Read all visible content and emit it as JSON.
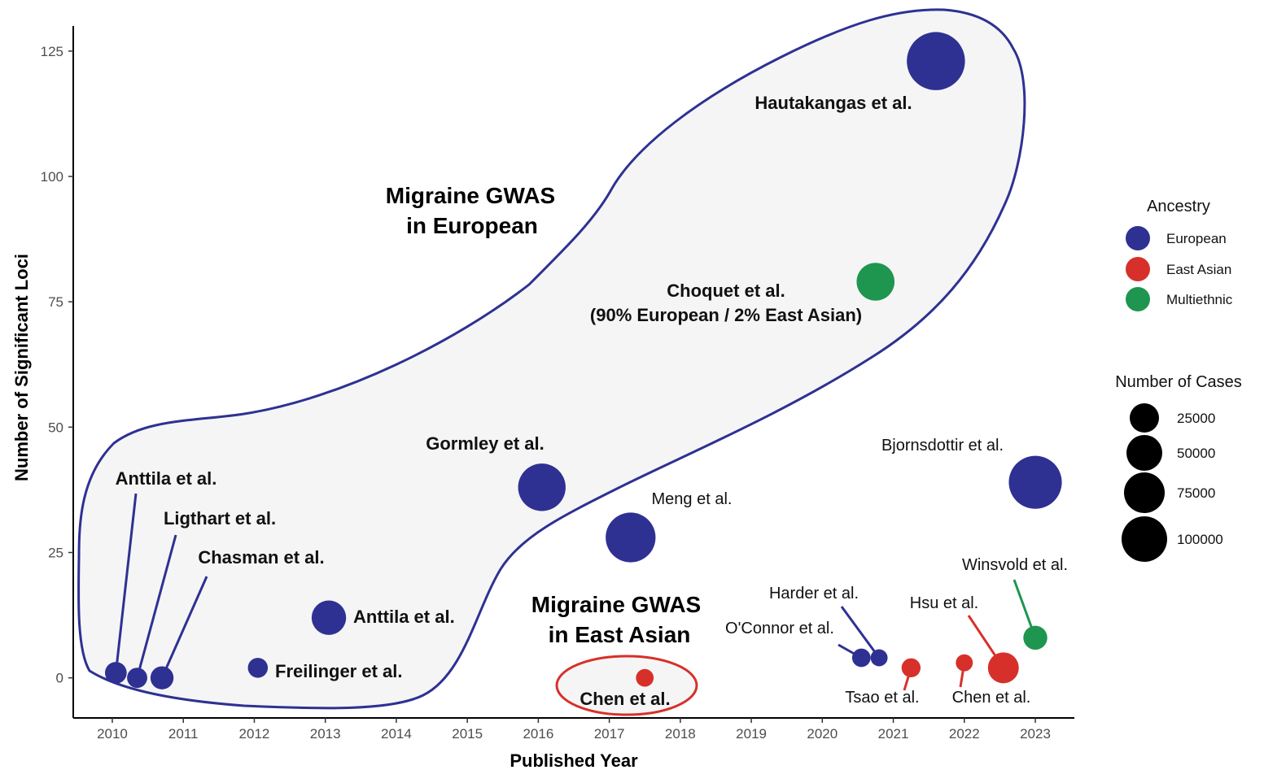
{
  "chart_data": {
    "type": "scatter",
    "xlabel": "Published Year",
    "ylabel": "Number of Significant Loci",
    "xlim": [
      2009.45,
      2023.55
    ],
    "ylim": [
      -8,
      130
    ],
    "x_ticks": [
      "2010",
      "2011",
      "2012",
      "2013",
      "2014",
      "2015",
      "2016",
      "2017",
      "2018",
      "2019",
      "2020",
      "2021",
      "2022",
      "2023"
    ],
    "y_ticks": [
      "0",
      "25",
      "50",
      "75",
      "100",
      "125"
    ],
    "grid": false,
    "colors": {
      "European": "#2e3192",
      "East Asian": "#d7302a",
      "Multiethnic": "#1e9650"
    },
    "points": [
      {
        "study": "Anttila et al.",
        "year": 2010.05,
        "loci": 1,
        "cases": 3800,
        "ancestry": "European"
      },
      {
        "study": "Ligthart et al.",
        "year": 2010.35,
        "loci": 0,
        "cases": 2600,
        "ancestry": "European"
      },
      {
        "study": "Chasman et al.",
        "year": 2010.7,
        "loci": 0,
        "cases": 5100,
        "ancestry": "European"
      },
      {
        "study": "Freilinger et al.",
        "year": 2012.05,
        "loci": 2,
        "cases": 2400,
        "ancestry": "European"
      },
      {
        "study": "Anttila et al.",
        "year": 2013.05,
        "loci": 12,
        "cases": 23000,
        "ancestry": "European"
      },
      {
        "study": "Gormley et al.",
        "year": 2016.05,
        "loci": 38,
        "cases": 59600,
        "ancestry": "European"
      },
      {
        "study": "Meng et al.",
        "year": 2017.3,
        "loci": 28,
        "cases": 68000,
        "ancestry": "European"
      },
      {
        "study": "Chen et al.",
        "year": 2017.5,
        "loci": 0,
        "cases": 1100,
        "ancestry": "East Asian"
      },
      {
        "study": "Choquet et al.",
        "year": 2020.75,
        "loci": 79,
        "cases": 31000,
        "ancestry": "Multiethnic"
      },
      {
        "study": "Hautakangas et al.",
        "year": 2021.6,
        "loci": 123,
        "cases": 102000,
        "ancestry": "European"
      },
      {
        "study": "O'Connor et al.",
        "year": 2020.55,
        "loci": 4,
        "cases": 1500,
        "ancestry": "European"
      },
      {
        "study": "Harder et al.",
        "year": 2020.8,
        "loci": 4,
        "cases": 800,
        "ancestry": "European"
      },
      {
        "study": "Tsao et al.",
        "year": 2021.25,
        "loci": 2,
        "cases": 1800,
        "ancestry": "East Asian"
      },
      {
        "study": "Chen et al.",
        "year": 2022.0,
        "loci": 3,
        "cases": 800,
        "ancestry": "East Asian"
      },
      {
        "study": "Hsu et al.",
        "year": 2022.55,
        "loci": 2,
        "cases": 16000,
        "ancestry": "East Asian"
      },
      {
        "study": "Winsvold et al.",
        "year": 2023.0,
        "loci": 8,
        "cases": 6000,
        "ancestry": "Multiethnic"
      },
      {
        "study": "Bjornsdottir et al.",
        "year": 2023.0,
        "loci": 39,
        "cases": 80000,
        "ancestry": "European"
      }
    ],
    "annotations": [
      "Migraine GWAS",
      "in European",
      "Migraine GWAS",
      "in East Asian",
      "(90% European / 2% East Asian)"
    ],
    "legend": {
      "position": "right",
      "color_title": "Ancestry",
      "color_items": [
        "European",
        "East Asian",
        "Multiethnic"
      ],
      "size_title": "Number of Cases",
      "size_items": [
        "25000",
        "50000",
        "75000",
        "100000"
      ]
    }
  }
}
